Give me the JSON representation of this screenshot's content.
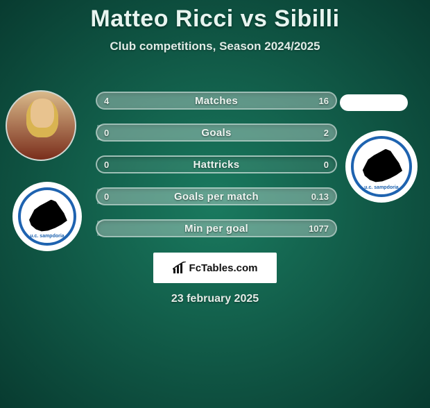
{
  "title": "Matteo Ricci vs Sibilli",
  "subtitle": "Club competitions, Season 2024/2025",
  "footer_date": "23 february 2025",
  "brand": "FcTables.com",
  "colors": {
    "bg_inner": "#1a7a5f",
    "bg_outer": "#083b30",
    "bar_border": "rgba(255,255,255,0.55)",
    "bar_fill": "rgba(255,255,255,0.26)",
    "text": "#eef5f1",
    "badge_blue": "#1e63b0",
    "badge_caption": "u.c. sampdoria"
  },
  "stats": [
    {
      "label": "Matches",
      "left_val": "4",
      "right_val": "16",
      "left_pct": 20,
      "right_pct": 80
    },
    {
      "label": "Goals",
      "left_val": "0",
      "right_val": "2",
      "left_pct": 0,
      "right_pct": 100
    },
    {
      "label": "Hattricks",
      "left_val": "0",
      "right_val": "0",
      "left_pct": 0,
      "right_pct": 0
    },
    {
      "label": "Goals per match",
      "left_val": "0",
      "right_val": "0.13",
      "left_pct": 0,
      "right_pct": 100
    },
    {
      "label": "Min per goal",
      "left_val": "",
      "right_val": "1077",
      "left_pct": 0,
      "right_pct": 100
    }
  ]
}
